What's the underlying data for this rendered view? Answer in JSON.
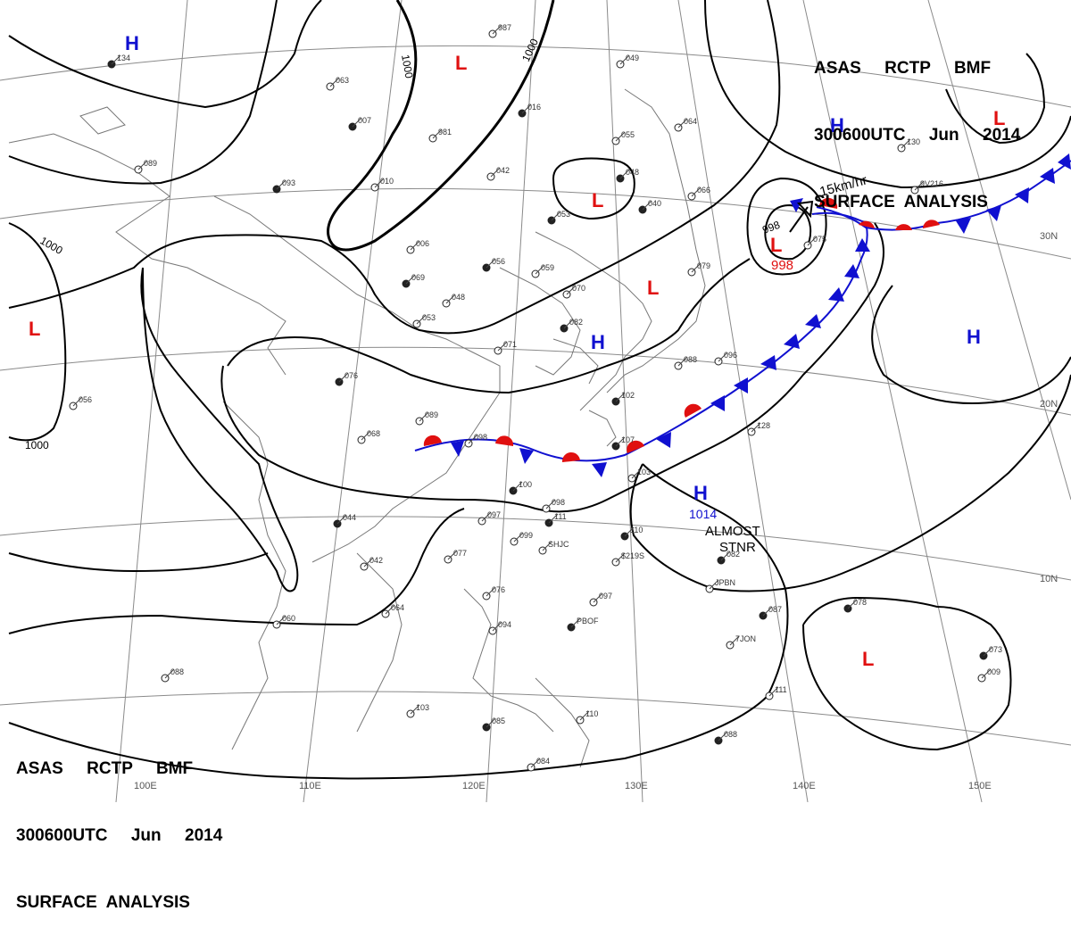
{
  "title_top": {
    "line1": "ASAS     RCTP     BMF",
    "line2": "300600UTC     Jun     2014",
    "line3": "SURFACE  ANALYSIS"
  },
  "title_bottom": {
    "line1": "ASAS     RCTP     BMF",
    "line2": "300600UTC     Jun     2014",
    "line3": "SURFACE  ANALYSIS"
  },
  "longitude_labels": [
    "100E",
    "110E",
    "120E",
    "130E",
    "140E",
    "150E"
  ],
  "latitude_labels": [
    "30N",
    "20N",
    "10N"
  ],
  "isobar_labels": [
    "1000",
    "1000",
    "1000",
    "1000",
    "998"
  ],
  "pressure_centers": [
    {
      "type": "H",
      "color": "#1010d0"
    },
    {
      "type": "L",
      "color": "#e01010"
    },
    {
      "type": "H",
      "color": "#1010d0"
    },
    {
      "type": "L",
      "color": "#e01010"
    },
    {
      "type": "L",
      "color": "#e01010"
    },
    {
      "type": "L",
      "color": "#e01010"
    },
    {
      "type": "L",
      "color": "#e01010"
    },
    {
      "type": "H",
      "color": "#1010d0"
    },
    {
      "type": "H",
      "color": "#1010d0"
    },
    {
      "type": "H",
      "color": "#1010d0"
    },
    {
      "type": "L",
      "color": "#e01010"
    },
    {
      "type": "L",
      "color": "#e01010"
    }
  ],
  "annotations": {
    "storm_speed": "15km/hr",
    "high_value": "1014",
    "almost": "ALMOST",
    "stnr": "STNR"
  },
  "station_labels": [
    "134",
    "987",
    "063",
    "007",
    "981",
    "049",
    "016",
    "042",
    "089",
    "093",
    "010",
    "055",
    "048",
    "064",
    "130",
    "053",
    "066",
    "9V216",
    "040",
    "075",
    "006",
    "056",
    "059",
    "079",
    "069",
    "048",
    "070",
    "082",
    "053",
    "071",
    "076",
    "088",
    "096",
    "102",
    "089",
    "068",
    "107",
    "098",
    "103",
    "100",
    "098",
    "097",
    "111",
    "SHJC",
    "099",
    "110",
    "$219S",
    "128",
    "044",
    "077",
    "042",
    "082",
    "JPBN",
    "097",
    "PBOF",
    "060",
    "064",
    "078",
    "076",
    "7JON",
    "087",
    "094",
    "088",
    "073",
    "111",
    "103",
    "085",
    "110",
    "084",
    "088",
    "009",
    "056"
  ],
  "colors": {
    "warm_front": "#e01010",
    "cold_front": "#1010d0",
    "isobar": "#000000"
  }
}
